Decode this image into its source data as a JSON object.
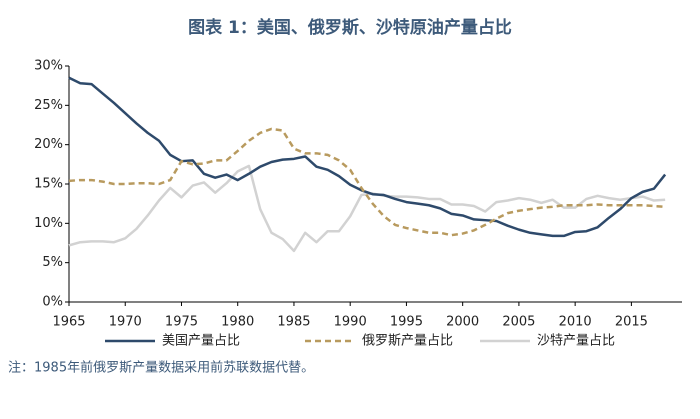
{
  "chart_data": {
    "type": "line",
    "title": "图表 1：美国、俄罗斯、沙特原油产量占比",
    "note": "注：1985年前俄罗斯产量数据采用前苏联数据代替。",
    "x": [
      1965,
      1966,
      1967,
      1968,
      1969,
      1970,
      1971,
      1972,
      1973,
      1974,
      1975,
      1976,
      1977,
      1978,
      1979,
      1980,
      1981,
      1982,
      1983,
      1984,
      1985,
      1986,
      1987,
      1988,
      1989,
      1990,
      1991,
      1992,
      1993,
      1994,
      1995,
      1996,
      1997,
      1998,
      1999,
      2000,
      2001,
      2002,
      2003,
      2004,
      2005,
      2006,
      2007,
      2008,
      2009,
      2010,
      2011,
      2012,
      2013,
      2014,
      2015,
      2016,
      2017,
      2018
    ],
    "xlim": [
      1965,
      2019.5
    ],
    "xticks": [
      1965,
      1970,
      1975,
      1980,
      1985,
      1990,
      1995,
      2000,
      2005,
      2010,
      2015
    ],
    "ylim": [
      0,
      30
    ],
    "yticks": [
      {
        "value": 0,
        "label": "0%"
      },
      {
        "value": 5,
        "label": "5%"
      },
      {
        "value": 10,
        "label": "10%"
      },
      {
        "value": 15,
        "label": "15%"
      },
      {
        "value": 20,
        "label": "20%"
      },
      {
        "value": 25,
        "label": "25%"
      },
      {
        "value": 30,
        "label": "30%"
      }
    ],
    "series": [
      {
        "name": "美国产量占比",
        "color": "#2e4a6b",
        "style": "solid",
        "values": [
          28.5,
          27.8,
          27.7,
          26.5,
          25.3,
          24.0,
          22.7,
          21.5,
          20.5,
          18.7,
          17.9,
          18.0,
          16.3,
          15.8,
          16.2,
          15.5,
          16.3,
          17.2,
          17.8,
          18.1,
          18.2,
          18.5,
          17.2,
          16.8,
          16.0,
          14.9,
          14.2,
          13.7,
          13.6,
          13.1,
          12.7,
          12.5,
          12.3,
          11.9,
          11.2,
          11.0,
          10.5,
          10.4,
          10.3,
          9.7,
          9.2,
          8.8,
          8.6,
          8.4,
          8.4,
          8.9,
          9.0,
          9.5,
          10.7,
          11.8,
          13.2,
          14.0,
          14.4,
          16.2
        ]
      },
      {
        "name": "俄罗斯产量占比",
        "color": "#b89a5e",
        "style": "dashed",
        "values": [
          15.4,
          15.5,
          15.5,
          15.3,
          15.0,
          15.0,
          15.1,
          15.1,
          15.0,
          15.5,
          17.9,
          17.5,
          17.6,
          18.0,
          18.0,
          19.2,
          20.5,
          21.5,
          22.0,
          21.8,
          19.5,
          18.9,
          18.9,
          18.7,
          18.0,
          16.8,
          14.5,
          12.5,
          10.9,
          9.8,
          9.4,
          9.1,
          8.8,
          8.8,
          8.5,
          8.7,
          9.1,
          9.8,
          10.6,
          11.3,
          11.6,
          11.8,
          12.0,
          12.1,
          12.3,
          12.3,
          12.3,
          12.4,
          12.3,
          12.3,
          12.3,
          12.3,
          12.2,
          12.1
        ]
      },
      {
        "name": "沙特产量占比",
        "color": "#d2d2d2",
        "style": "solid",
        "values": [
          7.2,
          7.6,
          7.7,
          7.7,
          7.6,
          8.1,
          9.3,
          11.0,
          12.9,
          14.5,
          13.3,
          14.8,
          15.2,
          13.9,
          15.1,
          16.6,
          17.3,
          11.8,
          8.8,
          8.0,
          6.5,
          8.8,
          7.6,
          9.0,
          9.0,
          10.9,
          13.6,
          13.8,
          13.5,
          13.4,
          13.4,
          13.3,
          13.1,
          13.1,
          12.4,
          12.4,
          12.2,
          11.5,
          12.7,
          12.9,
          13.2,
          13.0,
          12.6,
          13.0,
          12.0,
          12.0,
          13.1,
          13.5,
          13.2,
          13.0,
          13.2,
          13.4,
          12.9,
          13.0
        ]
      }
    ]
  }
}
